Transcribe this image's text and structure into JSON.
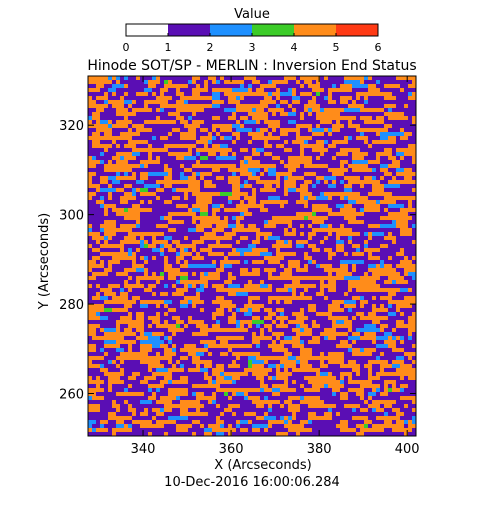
{
  "chart_data": {
    "type": "heatmap",
    "title": "Hinode SOT/SP - MERLIN : Inversion End Status",
    "xlabel": "X (Arcseconds)",
    "ylabel": "Y (Arcseconds)",
    "xlim": [
      327.5,
      402
    ],
    "ylim": [
      250.5,
      331
    ],
    "xticks": [
      340,
      360,
      380,
      400
    ],
    "yticks": [
      260,
      280,
      300,
      320
    ],
    "timestamp": "10-Dec-2016 16:00:06.284",
    "colorbar": {
      "title": "Value",
      "range": [
        0,
        6
      ],
      "ticks": [
        "0",
        "1",
        "2",
        "3",
        "4",
        "5",
        "6"
      ],
      "segments": [
        {
          "from": 0,
          "to": 1,
          "color": "#ffffff"
        },
        {
          "from": 1,
          "to": 2,
          "color": "#5a0eb4"
        },
        {
          "from": 2,
          "to": 3,
          "color": "#1e90ff"
        },
        {
          "from": 3,
          "to": 4,
          "color": "#3ccc28"
        },
        {
          "from": 4,
          "to": 5,
          "color": "#ff8c1a"
        },
        {
          "from": 5,
          "to": 6,
          "color": "#ff3a14"
        }
      ]
    },
    "value_mix": [
      {
        "value": 1,
        "fraction": 0.47
      },
      {
        "value": 2,
        "fraction": 0.07
      },
      {
        "value": 3,
        "fraction": 0.005
      },
      {
        "value": 4,
        "fraction": 0.455
      }
    ],
    "grid": false
  }
}
